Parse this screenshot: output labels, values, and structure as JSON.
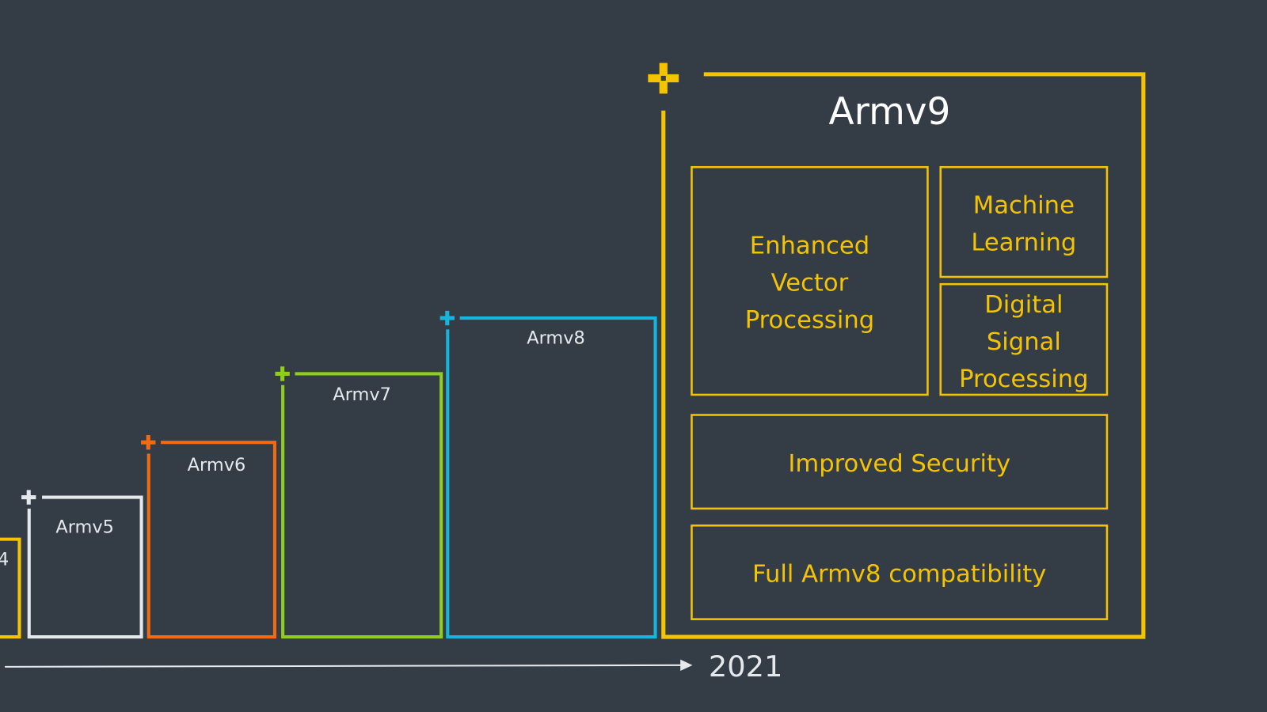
{
  "colors": {
    "background": "#343c46",
    "armv4": "#f5c400",
    "armv5": "#e6e9ec",
    "armv6": "#f26b14",
    "armv7": "#8fce1e",
    "armv8": "#19b4dc",
    "armv9": "#f5c400",
    "axis": "#e6e9ec"
  },
  "icons": {
    "corner_marker": "plus-cross-icon"
  },
  "versions": {
    "armv4": {
      "label": "4"
    },
    "armv5": {
      "label": "Armv5"
    },
    "armv6": {
      "label": "Armv6"
    },
    "armv7": {
      "label": "Armv7"
    },
    "armv8": {
      "label": "Armv8"
    },
    "armv9": {
      "label": "Armv9"
    }
  },
  "features": {
    "evp": [
      "Enhanced",
      "Vector",
      "Processing"
    ],
    "ml": [
      "Machine",
      "Learning"
    ],
    "dsp": [
      "Digital",
      "Signal",
      "Processing"
    ],
    "security": "Improved Security",
    "compat": "Full Armv8 compatibility"
  },
  "timeline": {
    "year": "2021"
  }
}
